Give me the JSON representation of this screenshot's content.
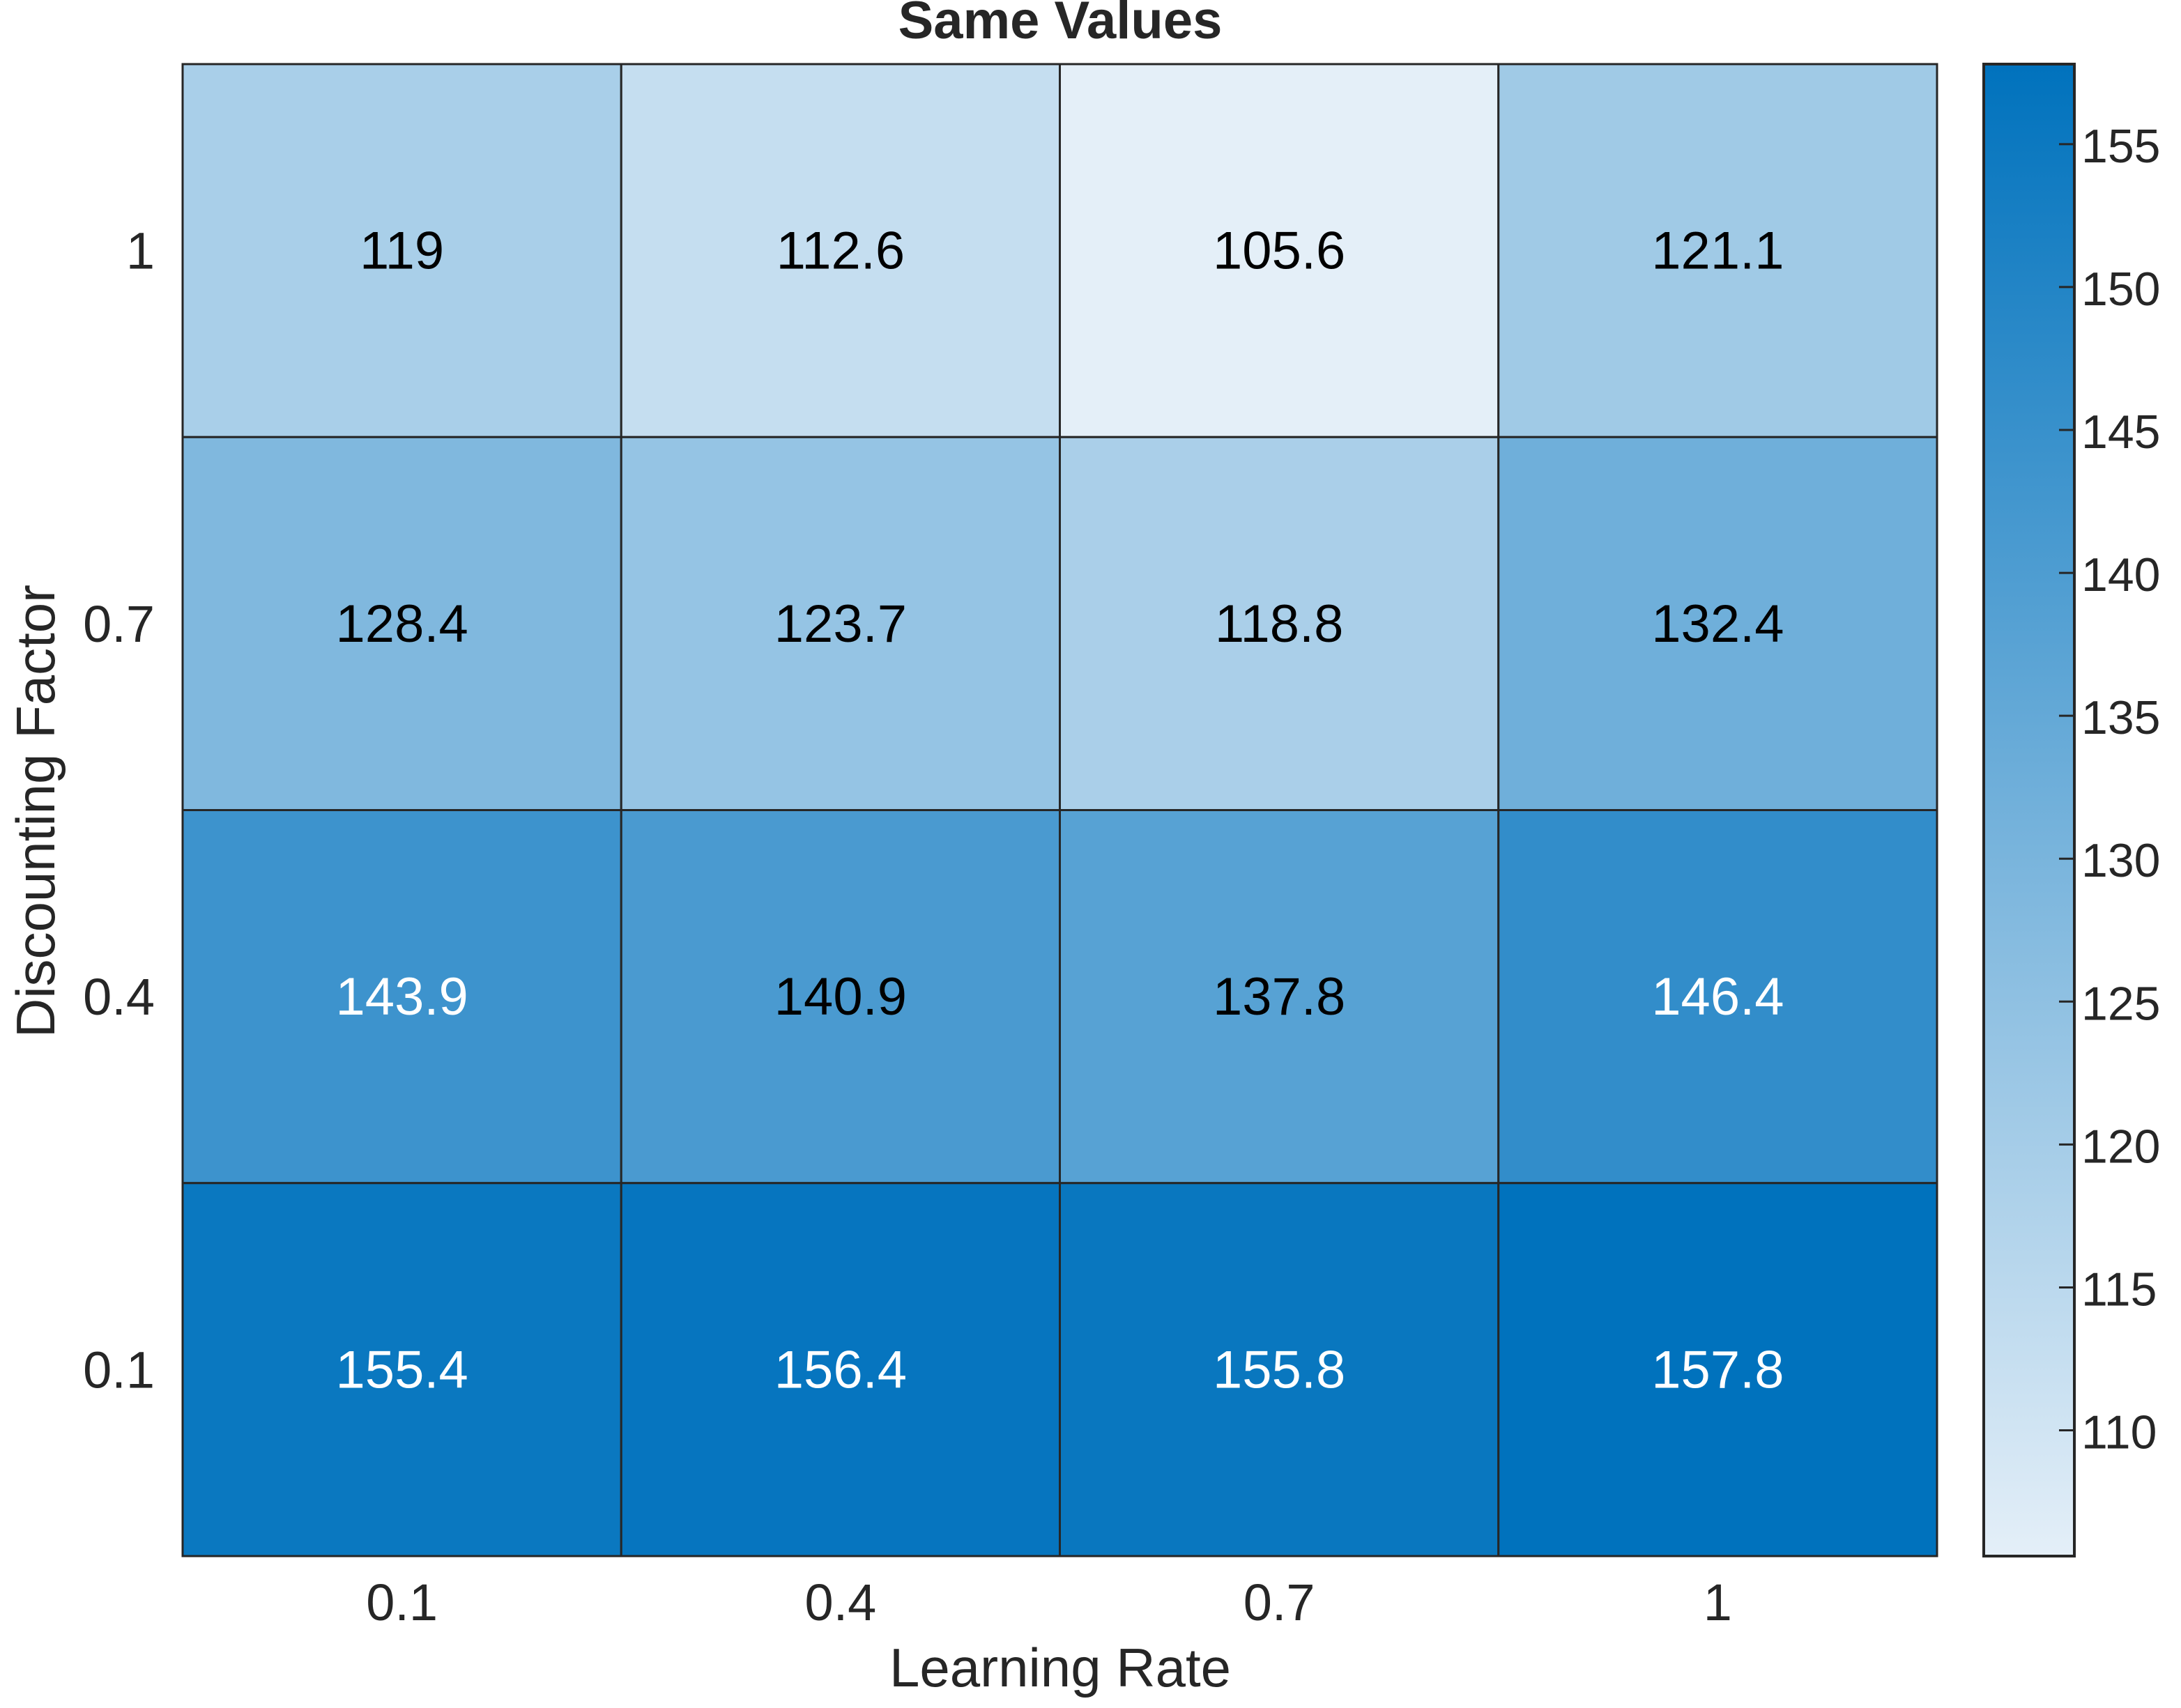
{
  "chart_data": {
    "type": "heatmap",
    "title": "Same Values",
    "xlabel": "Learning Rate",
    "ylabel": "Discounting Factor",
    "x_categories": [
      "0.1",
      "0.4",
      "0.7",
      "1"
    ],
    "y_categories": [
      "1",
      "0.7",
      "0.4",
      "0.1"
    ],
    "values": [
      [
        119,
        112.6,
        105.6,
        121.1
      ],
      [
        128.4,
        123.7,
        118.8,
        132.4
      ],
      [
        143.9,
        140.9,
        137.8,
        146.4
      ],
      [
        155.4,
        156.4,
        155.8,
        157.8
      ]
    ],
    "cell_labels": [
      [
        "119",
        "112.6",
        "105.6",
        "121.1"
      ],
      [
        "128.4",
        "123.7",
        "118.8",
        "132.4"
      ],
      [
        "143.9",
        "140.9",
        "137.8",
        "146.4"
      ],
      [
        "155.4",
        "156.4",
        "155.8",
        "157.8"
      ]
    ],
    "colorbar": {
      "range": [
        105.6,
        157.8
      ],
      "ticks": [
        110,
        115,
        120,
        125,
        130,
        135,
        140,
        145,
        150,
        155
      ],
      "colors": {
        "low": "#e4eff8",
        "high": "#0072bd"
      }
    },
    "grid": true
  }
}
